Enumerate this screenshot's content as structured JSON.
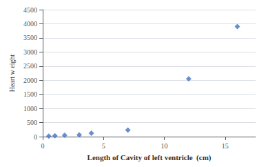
{
  "chart_data": {
    "type": "scatter",
    "xlabel": "Length of Cavity of left ventricle  (cm)",
    "ylabel": "Heart w eight",
    "x": [
      0.5,
      1.0,
      1.8,
      3.0,
      4.0,
      7.0,
      12.0,
      16.0
    ],
    "values": [
      20,
      30,
      50,
      60,
      120,
      230,
      2050,
      3900
    ],
    "color": "#4472C4",
    "marker": "diamond",
    "xlim": [
      0,
      17.5
    ],
    "ylim": [
      0,
      4500
    ],
    "xticks": [
      0,
      5,
      10,
      15
    ],
    "yticks": [
      0,
      500,
      1000,
      1500,
      2000,
      2500,
      3000,
      3500,
      4000,
      4500
    ],
    "grid": "y"
  }
}
